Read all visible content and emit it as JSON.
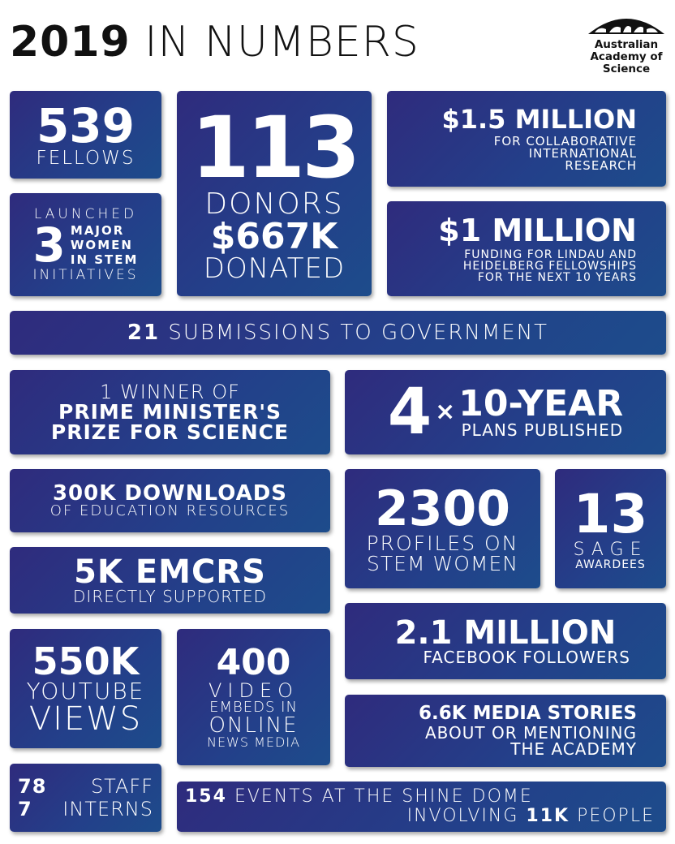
{
  "title": {
    "year": "2019",
    "rest": "IN NUMBERS"
  },
  "logo": {
    "line1": "Australian",
    "line2": "Academy of",
    "line3": "Science"
  },
  "fellows": {
    "number": "539",
    "label": "FELLOWS"
  },
  "women": {
    "top": "LAUNCHED",
    "number": "3",
    "l1": "MAJOR",
    "l2": "WOMEN",
    "l3": "IN STEM",
    "bottom": "INITIATIVES"
  },
  "donors": {
    "number": "113",
    "l1": "DONORS",
    "amount": "$667K",
    "l2": "DONATED"
  },
  "intl": {
    "amount": "$1.5 MILLION",
    "l1": "FOR COLLABORATIVE",
    "l2": "INTERNATIONAL",
    "l3": "RESEARCH"
  },
  "lindau": {
    "amount": "$1 MILLION",
    "l1": "FUNDING FOR LINDAU AND",
    "l2": "HEIDELBERG FELLOWSHIPS",
    "l3": "FOR THE NEXT 10 YEARS"
  },
  "submissions": {
    "number": "21",
    "label": "SUBMISSIONS TO GOVERNMENT"
  },
  "pm": {
    "l1": "1 WINNER OF",
    "l2": "PRIME MINISTER'S",
    "l3": "PRIZE FOR SCIENCE"
  },
  "plans": {
    "number": "4",
    "times": "×",
    "big": "10-YEAR",
    "label": "PLANS PUBLISHED"
  },
  "downloads": {
    "big": "300K DOWNLOADS",
    "label": "OF EDUCATION RESOURCES"
  },
  "emcrs": {
    "big": "5K EMCRS",
    "label": "DIRECTLY SUPPORTED"
  },
  "profiles": {
    "number": "2300",
    "l1": "PROFILES ON",
    "l2": "STEM WOMEN"
  },
  "sage": {
    "number": "13",
    "l1": "SAGE",
    "l2": "AWARDEES"
  },
  "facebook": {
    "big": "2.1 MILLION",
    "label": "FACEBOOK FOLLOWERS"
  },
  "youtube": {
    "number": "550K",
    "l1": "YOUTUBE",
    "l2": "VIEWS"
  },
  "video": {
    "number": "400",
    "l1": "VIDEO",
    "l2": "EMBEDS IN",
    "l3": "ONLINE",
    "l4": "NEWS MEDIA"
  },
  "media": {
    "big": "6.6K MEDIA STORIES",
    "l1": "ABOUT OR MENTIONING",
    "l2": "THE ACADEMY"
  },
  "staff": {
    "n1": "78",
    "t1": "STAFF",
    "n2": "7",
    "t2": "INTERNS"
  },
  "events": {
    "n1": "154",
    "t1": "EVENTS AT THE SHINE DOME",
    "t2a": "INVOLVING",
    "n2": "11K",
    "t2b": "PEOPLE"
  }
}
